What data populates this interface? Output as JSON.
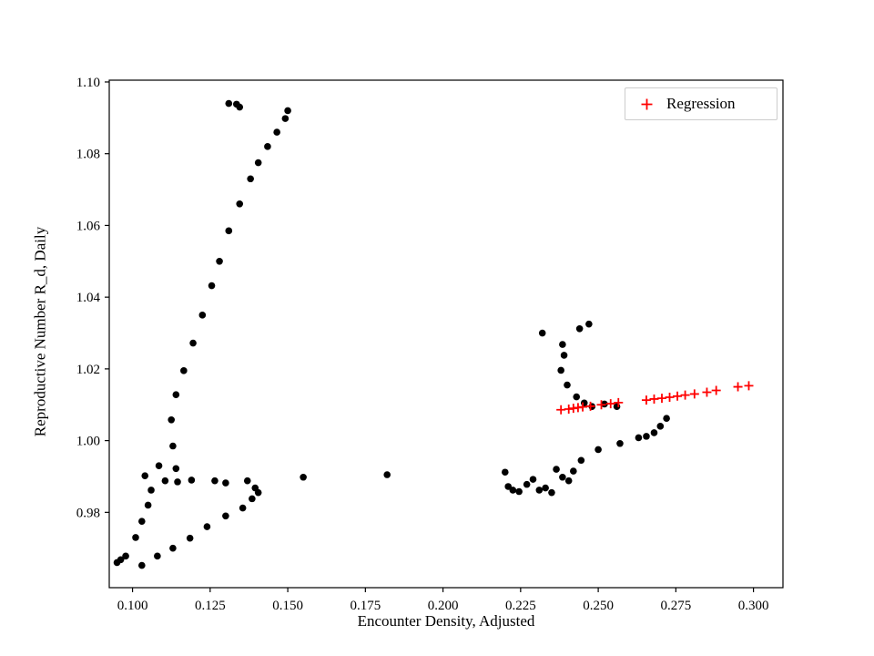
{
  "figure": {
    "background": "#ffffff",
    "plot_border_color": "#000000"
  },
  "chart_data": {
    "type": "scatter",
    "title": "",
    "xlabel": "Encounter Density, Adjusted",
    "ylabel": "Reproductive Number R_d, Daily",
    "xlim": [
      0.0925,
      0.3095
    ],
    "ylim": [
      0.959,
      1.1005
    ],
    "grid": false,
    "xticks": {
      "values": [
        0.1,
        0.125,
        0.15,
        0.175,
        0.2,
        0.225,
        0.25,
        0.275,
        0.3
      ],
      "labels": [
        "0.100",
        "0.125",
        "0.150",
        "0.175",
        "0.200",
        "0.225",
        "0.250",
        "0.275",
        "0.300"
      ]
    },
    "yticks": {
      "values": [
        0.98,
        1.0,
        1.02,
        1.04,
        1.06,
        1.08,
        1.1
      ],
      "labels": [
        "0.98",
        "1.00",
        "1.02",
        "1.04",
        "1.06",
        "1.08",
        "1.10"
      ]
    },
    "legend": {
      "position": "upper right",
      "entries": [
        {
          "label": "Regression",
          "marker": "plus-icon",
          "color": "#ff0000"
        }
      ]
    },
    "series": [
      {
        "name": "observations",
        "marker": "circle",
        "color": "#000000",
        "in_legend": false,
        "points": [
          [
            0.131,
            1.094
          ],
          [
            0.1335,
            1.0938
          ],
          [
            0.1345,
            1.093
          ],
          [
            0.15,
            1.092
          ],
          [
            0.1492,
            1.0898
          ],
          [
            0.1465,
            1.086
          ],
          [
            0.1435,
            1.082
          ],
          [
            0.1405,
            1.0775
          ],
          [
            0.138,
            1.073
          ],
          [
            0.1345,
            1.066
          ],
          [
            0.131,
            1.0585
          ],
          [
            0.128,
            1.05
          ],
          [
            0.1255,
            1.0432
          ],
          [
            0.1225,
            1.035
          ],
          [
            0.1195,
            1.0272
          ],
          [
            0.1165,
            1.0195
          ],
          [
            0.114,
            1.0128
          ],
          [
            0.1125,
            1.0058
          ],
          [
            0.113,
            0.9985
          ],
          [
            0.114,
            0.9922
          ],
          [
            0.1085,
            0.993
          ],
          [
            0.1105,
            0.9888
          ],
          [
            0.1145,
            0.9885
          ],
          [
            0.119,
            0.989
          ],
          [
            0.1265,
            0.9888
          ],
          [
            0.13,
            0.9882
          ],
          [
            0.137,
            0.9888
          ],
          [
            0.1395,
            0.9868
          ],
          [
            0.1405,
            0.9855
          ],
          [
            0.1385,
            0.9838
          ],
          [
            0.104,
            0.9902
          ],
          [
            0.106,
            0.9862
          ],
          [
            0.105,
            0.982
          ],
          [
            0.103,
            0.9775
          ],
          [
            0.101,
            0.973
          ],
          [
            0.095,
            0.966
          ],
          [
            0.0962,
            0.9668
          ],
          [
            0.0978,
            0.9678
          ],
          [
            0.103,
            0.9652
          ],
          [
            0.108,
            0.9678
          ],
          [
            0.113,
            0.97
          ],
          [
            0.1185,
            0.9728
          ],
          [
            0.124,
            0.976
          ],
          [
            0.13,
            0.979
          ],
          [
            0.1355,
            0.9812
          ],
          [
            0.155,
            0.9898
          ],
          [
            0.182,
            0.9905
          ],
          [
            0.22,
            0.9912
          ],
          [
            0.221,
            0.9872
          ],
          [
            0.2225,
            0.9862
          ],
          [
            0.2245,
            0.9858
          ],
          [
            0.227,
            0.9878
          ],
          [
            0.229,
            0.9892
          ],
          [
            0.231,
            0.9862
          ],
          [
            0.233,
            0.9868
          ],
          [
            0.235,
            0.9855
          ],
          [
            0.2365,
            0.992
          ],
          [
            0.2385,
            0.9898
          ],
          [
            0.2405,
            0.9888
          ],
          [
            0.242,
            0.9915
          ],
          [
            0.2445,
            0.9945
          ],
          [
            0.25,
            0.9975
          ],
          [
            0.257,
            0.9992
          ],
          [
            0.263,
            1.0008
          ],
          [
            0.2655,
            1.0012
          ],
          [
            0.268,
            1.0022
          ],
          [
            0.27,
            1.004
          ],
          [
            0.272,
            1.0062
          ],
          [
            0.232,
            1.03
          ],
          [
            0.244,
            1.0312
          ],
          [
            0.247,
            1.0325
          ],
          [
            0.2385,
            1.0268
          ],
          [
            0.239,
            1.0238
          ],
          [
            0.238,
            1.0196
          ],
          [
            0.24,
            1.0155
          ],
          [
            0.243,
            1.0122
          ],
          [
            0.2455,
            1.0105
          ],
          [
            0.248,
            1.0095
          ],
          [
            0.252,
            1.0102
          ],
          [
            0.256,
            1.0095
          ]
        ]
      },
      {
        "name": "Regression",
        "marker": "plus",
        "color": "#ff0000",
        "in_legend": true,
        "points": [
          [
            0.238,
            1.0086
          ],
          [
            0.2405,
            1.0088
          ],
          [
            0.242,
            1.009
          ],
          [
            0.2435,
            1.0092
          ],
          [
            0.245,
            1.0094
          ],
          [
            0.2475,
            1.0096
          ],
          [
            0.251,
            1.01
          ],
          [
            0.254,
            1.0103
          ],
          [
            0.2565,
            1.0106
          ],
          [
            0.2655,
            1.0113
          ],
          [
            0.268,
            1.0116
          ],
          [
            0.2705,
            1.0118
          ],
          [
            0.273,
            1.0121
          ],
          [
            0.2755,
            1.0124
          ],
          [
            0.278,
            1.0127
          ],
          [
            0.281,
            1.013
          ],
          [
            0.285,
            1.0135
          ],
          [
            0.288,
            1.014
          ],
          [
            0.295,
            1.015
          ],
          [
            0.2985,
            1.0153
          ]
        ]
      }
    ]
  }
}
